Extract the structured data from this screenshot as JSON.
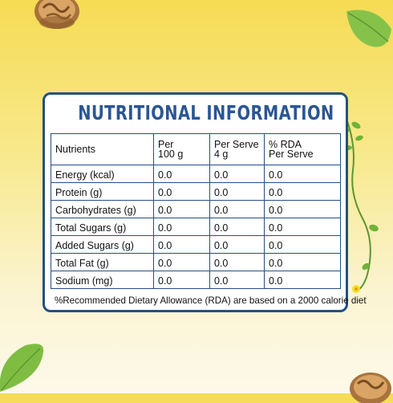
{
  "title": "NUTRITIONAL INFORMATION",
  "table": {
    "headers": [
      "Nutrients",
      "Per 100 g",
      "Per Serve 4 g",
      "% RDA Per Serve"
    ],
    "header_lines": [
      [
        "Nutrients"
      ],
      [
        "Per",
        "100 g"
      ],
      [
        "Per Serve",
        "4 g"
      ],
      [
        "% RDA",
        "Per Serve"
      ]
    ],
    "rows": [
      [
        "Energy (kcal)",
        "0.0",
        "0.0",
        "0.0"
      ],
      [
        "Protein (g)",
        "0.0",
        "0.0",
        "0.0"
      ],
      [
        "Carbohydrates (g)",
        "0.0",
        "0.0",
        "0.0"
      ],
      [
        "Total Sugars (g)",
        "0.0",
        "0.0",
        "0.0"
      ],
      [
        "Added Sugars (g)",
        "0.0",
        "0.0",
        "0.0"
      ],
      [
        "Total Fat (g)",
        "0.0",
        "0.0",
        "0.0"
      ],
      [
        "Sodium (mg)",
        "0.0",
        "0.0",
        "0.0"
      ]
    ]
  },
  "footnote": "%Recommended Dietary Allowance (RDA) are based on a 2000 calorie diet",
  "colors": {
    "accent": "#2a5694",
    "border": "#244f86",
    "background_top": "#f6db54",
    "background_bottom": "#fdf9ea",
    "leaf": "#6fb33a",
    "walnut": "#b07a42"
  },
  "decorations": [
    "walnut-top",
    "leaf-top-right",
    "stevia-vine",
    "leaf-bottom-left",
    "walnut-bottom-right"
  ]
}
